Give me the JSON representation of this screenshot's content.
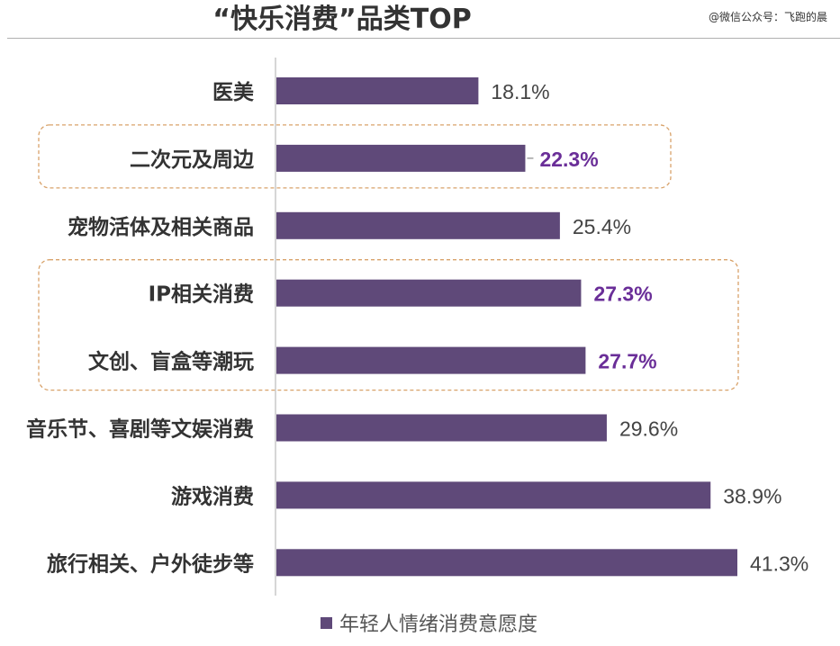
{
  "header": {
    "title": "“快乐消费”品类TOP",
    "watermark": "@微信公众号：飞跑的晨"
  },
  "colors": {
    "bar": "#5f4979",
    "highlight_text": "#6a2e98",
    "normal_text": "#444444",
    "callout_border": "#d8a26a",
    "axis": "#c8c8c8"
  },
  "chart_data": {
    "type": "bar",
    "orientation": "horizontal",
    "title": "“快乐消费”品类TOP",
    "xlabel": "",
    "ylabel": "",
    "categories": [
      "医美",
      "二次元及周边",
      "宠物活体及相关商品",
      "IP相关消费",
      "文创、盲盒等潮玩",
      "音乐节、喜剧等文娱消费",
      "游戏消费",
      "旅行相关、户外徒步等"
    ],
    "series": [
      {
        "name": "年轻人情绪消费意愿度",
        "values": [
          18.1,
          22.3,
          25.4,
          27.3,
          27.7,
          29.6,
          38.9,
          41.3
        ],
        "labels": [
          "18.1%",
          "22.3%",
          "25.4%",
          "27.3%",
          "27.7%",
          "29.6%",
          "38.9%",
          "41.3%"
        ]
      }
    ],
    "highlighted_categories": [
      "二次元及周边",
      "IP相关消费",
      "文创、盲盒等潮玩"
    ],
    "callout_groups": [
      [
        "二次元及周边"
      ],
      [
        "IP相关消费",
        "文创、盲盒等潮玩"
      ]
    ],
    "xlim": [
      0,
      41.3
    ],
    "grid": false,
    "legend_position": "bottom-center"
  }
}
